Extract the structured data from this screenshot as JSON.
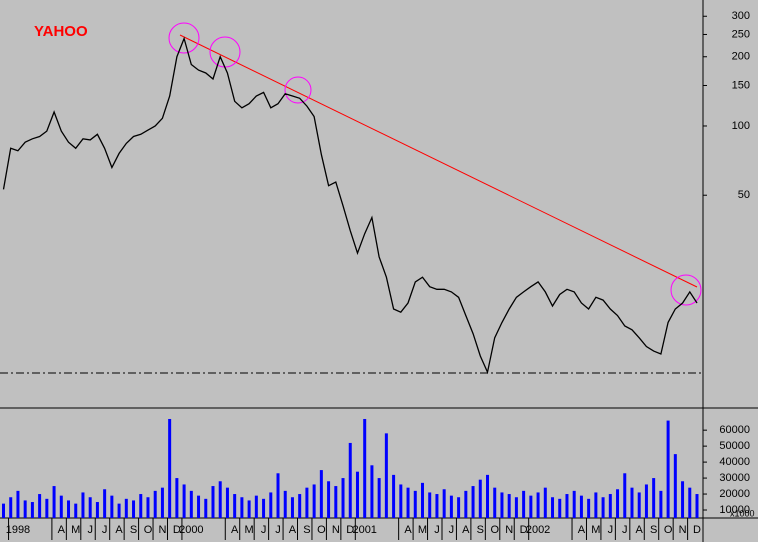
{
  "chart_data": [
    {
      "type": "line",
      "title": "YAHOO",
      "log_scale": true,
      "color": "#000000",
      "ylim": [
        6,
        346
      ],
      "yticks": [
        50,
        100,
        150,
        200,
        250,
        300
      ],
      "values": [
        53,
        80,
        78,
        85,
        88,
        90,
        95,
        115,
        95,
        85,
        80,
        88,
        87,
        92,
        80,
        66,
        76,
        84,
        90,
        92,
        96,
        100,
        108,
        135,
        200,
        240,
        185,
        175,
        170,
        160,
        200,
        170,
        128,
        120,
        125,
        135,
        140,
        120,
        125,
        138,
        135,
        132,
        122,
        110,
        75,
        55,
        57,
        45,
        35,
        28,
        34,
        40,
        27,
        22,
        16,
        15.5,
        17,
        21,
        22,
        20,
        19.5,
        19.5,
        19,
        18,
        15,
        12.5,
        10,
        8.5,
        12,
        14,
        16,
        18,
        19,
        20,
        21,
        19,
        16.5,
        18.5,
        19.5,
        19,
        17,
        16,
        18,
        17.5,
        16,
        15,
        13.5,
        13,
        12,
        11,
        10.5,
        10.2,
        14,
        16,
        17,
        19,
        17
      ]
    },
    {
      "type": "bar",
      "color": "#0000ff",
      "unit_label": "x1000",
      "ylim": [
        5000,
        72000
      ],
      "yticks": [
        10000,
        20000,
        30000,
        40000,
        50000,
        60000
      ],
      "categories": [
        null,
        null,
        "1998",
        null,
        null,
        null,
        null,
        null,
        "A",
        null,
        "M",
        null,
        "J",
        null,
        "J",
        null,
        "A",
        null,
        "S",
        null,
        "O",
        null,
        "N",
        null,
        "D",
        null,
        "2000",
        null,
        null,
        null,
        null,
        null,
        "A",
        null,
        "M",
        null,
        "J",
        null,
        "J",
        null,
        "A",
        null,
        "S",
        null,
        "O",
        null,
        "N",
        null,
        "D",
        null,
        "2001",
        null,
        null,
        null,
        null,
        null,
        "A",
        null,
        "M",
        null,
        "J",
        null,
        "J",
        null,
        "A",
        null,
        "S",
        null,
        "O",
        null,
        "N",
        null,
        "D",
        null,
        "2002",
        null,
        null,
        null,
        null,
        null,
        "A",
        null,
        "M",
        null,
        "J",
        null,
        "J",
        null,
        "A",
        null,
        "S",
        null,
        "O",
        null,
        "N",
        null,
        "D"
      ],
      "values": [
        14000,
        18000,
        22000,
        16000,
        15000,
        20000,
        17000,
        25000,
        19000,
        16000,
        14000,
        21000,
        18000,
        15000,
        23000,
        19000,
        14000,
        17000,
        16000,
        20000,
        18000,
        22000,
        24000,
        67000,
        30000,
        26000,
        22000,
        19000,
        17000,
        25000,
        28000,
        24000,
        20000,
        18000,
        16000,
        19000,
        17000,
        21000,
        33000,
        22000,
        18000,
        20000,
        24000,
        26000,
        35000,
        28000,
        25000,
        30000,
        52000,
        34000,
        67000,
        38000,
        30000,
        58000,
        32000,
        26000,
        24000,
        22000,
        27000,
        21000,
        20000,
        23000,
        19000,
        18000,
        22000,
        25000,
        29000,
        32000,
        24000,
        21000,
        20000,
        18000,
        22000,
        19000,
        21000,
        24000,
        18000,
        17000,
        20000,
        22000,
        19000,
        17000,
        21000,
        18000,
        20000,
        23000,
        33000,
        24000,
        21000,
        26000,
        30000,
        22000,
        66000,
        45000,
        28000,
        24000,
        20000
      ]
    }
  ]
}
